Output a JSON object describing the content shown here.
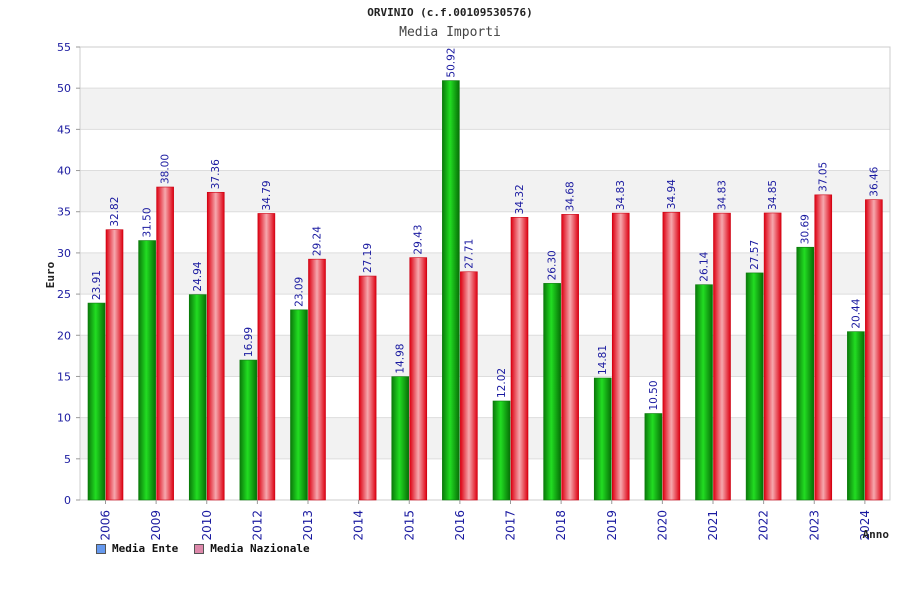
{
  "chart_data": {
    "type": "bar",
    "title": "ORVINIO (c.f.00109530576)",
    "subtitle": "Media Importi",
    "xlabel": "Anno",
    "ylabel": "Euro",
    "ylim": [
      0,
      55
    ],
    "yticks": [
      "0",
      "5",
      "10",
      "15",
      "20",
      "25",
      "30",
      "35",
      "40",
      "45",
      "50",
      "55"
    ],
    "grid": true,
    "legend_position": "bottom-left",
    "categories": [
      "2006",
      "2009",
      "2010",
      "2012",
      "2013",
      "2014",
      "2015",
      "2016",
      "2017",
      "2018",
      "2019",
      "2020",
      "2021",
      "2022",
      "2023",
      "2024"
    ],
    "series": [
      {
        "name": "Media Ente",
        "color": "#22aa22",
        "legend_color": "#6699ee",
        "values": [
          23.91,
          31.5,
          24.94,
          16.99,
          23.09,
          null,
          14.98,
          50.92,
          12.02,
          26.3,
          14.81,
          10.5,
          26.14,
          27.57,
          30.69,
          20.44
        ],
        "labels": [
          "23.91",
          "31.50",
          "24.94",
          "16.99",
          "23.09",
          "",
          "14.98",
          "50.92",
          "12.02",
          "26.30",
          "14.81",
          "10.50",
          "26.14",
          "27.57",
          "30.69",
          "20.44"
        ]
      },
      {
        "name": "Media Nazionale",
        "color": "#ee2233",
        "legend_color": "#dd88aa",
        "values": [
          32.82,
          38.0,
          37.36,
          34.79,
          29.24,
          27.19,
          29.43,
          27.71,
          34.32,
          34.68,
          34.83,
          34.94,
          34.83,
          34.85,
          37.05,
          36.46
        ],
        "labels": [
          "32.82",
          "38.00",
          "37.36",
          "34.79",
          "29.24",
          "27.19",
          "29.43",
          "27.71",
          "34.32",
          "34.68",
          "34.83",
          "34.94",
          "34.83",
          "34.85",
          "37.05",
          "36.46"
        ]
      }
    ]
  }
}
